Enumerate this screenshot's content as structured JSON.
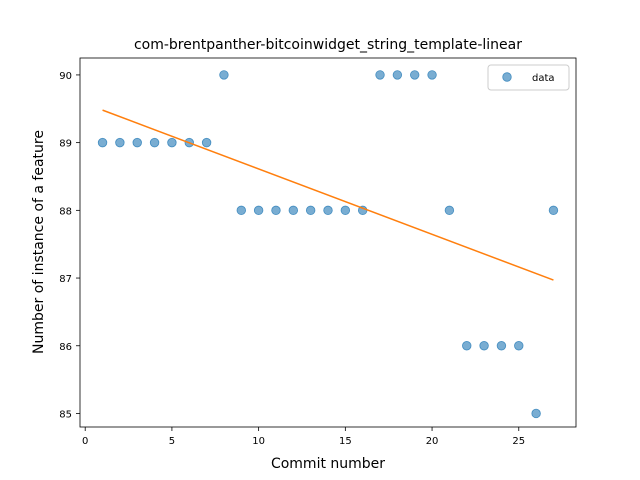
{
  "chart_data": {
    "type": "scatter",
    "title": "com-brentpanther-bitcoinwidget_string_template-linear",
    "xlabel": "Commit number",
    "ylabel": "Number of instance of a feature",
    "xlim": [
      -0.3,
      28.3
    ],
    "ylim": [
      84.8,
      90.25
    ],
    "xticks": [
      0,
      5,
      10,
      15,
      20,
      25
    ],
    "yticks": [
      85,
      86,
      87,
      88,
      89,
      90
    ],
    "grid": false,
    "legend_position": "top-right",
    "series": [
      {
        "name": "data",
        "kind": "scatter",
        "color": "#1f77b4",
        "x": [
          1,
          2,
          3,
          4,
          5,
          6,
          7,
          8,
          9,
          10,
          11,
          12,
          13,
          14,
          15,
          16,
          17,
          18,
          19,
          20,
          21,
          22,
          23,
          24,
          25,
          26,
          27
        ],
        "y": [
          89,
          89,
          89,
          89,
          89,
          89,
          89,
          90,
          88,
          88,
          88,
          88,
          88,
          88,
          88,
          88,
          90,
          90,
          90,
          90,
          88,
          86,
          86,
          86,
          86,
          85,
          88
        ]
      },
      {
        "kind": "line",
        "color": "#ff7f0e",
        "x": [
          1,
          27
        ],
        "y": [
          89.48,
          86.97
        ]
      }
    ]
  }
}
